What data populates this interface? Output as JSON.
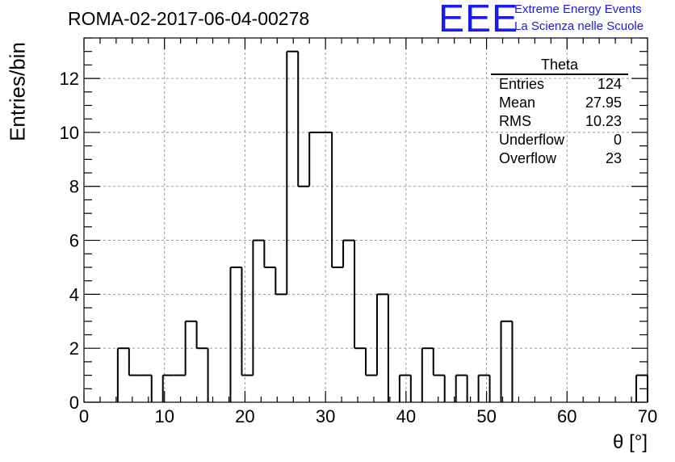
{
  "title": "ROMA-02-2017-06-04-00278",
  "logo": {
    "letters": "EEE",
    "line1": "Extreme Energy Events",
    "line2": "La Scienza nelle Scuole",
    "color": "#1a1aee"
  },
  "stats_box": {
    "title": "Theta",
    "rows": [
      {
        "label": "Entries",
        "value": "124"
      },
      {
        "label": "Mean",
        "value": "27.95"
      },
      {
        "label": "RMS",
        "value": "10.23"
      },
      {
        "label": "Underflow",
        "value": "0"
      },
      {
        "label": "Overflow",
        "value": "23"
      }
    ]
  },
  "chart_data": {
    "type": "bar",
    "title": "ROMA-02-2017-06-04-00278",
    "xlabel": "θ [°]",
    "ylabel": "Entries/bin",
    "xlim": [
      0,
      70
    ],
    "ylim": [
      0,
      13.5
    ],
    "grid": true,
    "x_ticks": [
      0,
      10,
      20,
      30,
      40,
      50,
      60,
      70
    ],
    "y_ticks": [
      0,
      2,
      4,
      6,
      8,
      10,
      12
    ],
    "bin_width": 1.4,
    "values": [
      0,
      0,
      0,
      2,
      1,
      1,
      0,
      1,
      1,
      3,
      2,
      0,
      0,
      5,
      1,
      6,
      5,
      4,
      13,
      8,
      10,
      10,
      5,
      6,
      2,
      1,
      4,
      0,
      1,
      0,
      2,
      1,
      0,
      1,
      0,
      1,
      0,
      3,
      0,
      0,
      0,
      0,
      0,
      0,
      0,
      0,
      0,
      0,
      0,
      1
    ]
  }
}
